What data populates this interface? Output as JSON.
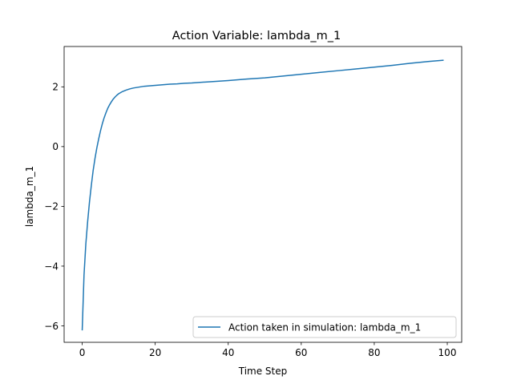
{
  "chart_data": {
    "type": "line",
    "title": "Action Variable: lambda_m_1",
    "xlabel": "Time Step",
    "ylabel": "lambda_m_1",
    "xlim": [
      -4.95,
      103.95
    ],
    "ylim": [
      -6.55,
      3.35
    ],
    "xticks": [
      0,
      20,
      40,
      60,
      80,
      100
    ],
    "yticks": [
      -6,
      -4,
      -2,
      0,
      2
    ],
    "xtick_labels": [
      "0",
      "20",
      "40",
      "60",
      "80",
      "100"
    ],
    "ytick_labels": [
      "−6",
      "−4",
      "−2",
      "0",
      "2"
    ],
    "grid": false,
    "legend_position": "lower right",
    "series": [
      {
        "name": "Action taken in simulation: lambda_m_1",
        "color": "#1f77b4",
        "x": [
          0,
          0.5,
          1,
          1.5,
          2,
          2.5,
          3,
          3.5,
          4,
          4.5,
          5,
          5.5,
          6,
          6.5,
          7,
          7.5,
          8,
          8.5,
          9,
          9.5,
          10,
          11,
          12,
          13,
          14,
          15,
          16,
          17,
          18,
          19,
          20,
          22,
          24,
          26,
          28,
          30,
          35,
          40,
          45,
          50,
          55,
          60,
          65,
          70,
          75,
          80,
          85,
          90,
          95,
          99
        ],
        "y": [
          -6.15,
          -4.3,
          -3.25,
          -2.5,
          -1.85,
          -1.3,
          -0.8,
          -0.4,
          -0.05,
          0.25,
          0.52,
          0.76,
          0.96,
          1.13,
          1.28,
          1.4,
          1.5,
          1.59,
          1.66,
          1.72,
          1.77,
          1.84,
          1.89,
          1.93,
          1.96,
          1.98,
          2.0,
          2.02,
          2.03,
          2.04,
          2.05,
          2.07,
          2.09,
          2.1,
          2.12,
          2.13,
          2.17,
          2.21,
          2.26,
          2.3,
          2.36,
          2.42,
          2.48,
          2.54,
          2.6,
          2.66,
          2.72,
          2.79,
          2.85,
          2.89
        ]
      }
    ]
  }
}
